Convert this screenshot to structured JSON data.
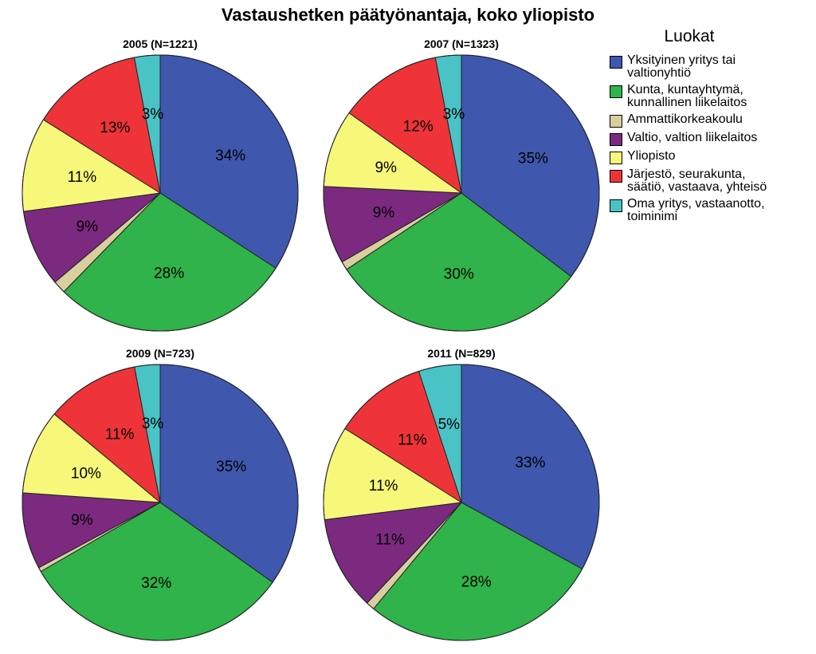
{
  "title": "Vastaushetken päätyönantaja, koko yliopisto",
  "legend": {
    "title": "Luokat",
    "items": [
      {
        "label": "Yksityinen yritys tai\nvaltionyhtiö",
        "color": "#3f57ad"
      },
      {
        "label": "Kunta, kuntayhtymä,\nkunnallinen liikelaitos",
        "color": "#2fb34a"
      },
      {
        "label": "Ammattikorkeakoulu",
        "color": "#d9cf9e"
      },
      {
        "label": "Valtio, valtion liikelaitos",
        "color": "#7b2a7f"
      },
      {
        "label": "Yliopisto",
        "color": "#f7f77a"
      },
      {
        "label": "Järjestö, seurakunta,\nsäätiö, vastaava, yhteisö",
        "color": "#ee3438"
      },
      {
        "label": "Oma yritys, vastaanotto,\ntoiminimi",
        "color": "#4ac3c6"
      }
    ]
  },
  "chart_data": [
    {
      "type": "pie",
      "title": "2005 (N=1221)",
      "categories": [
        "Yksityinen yritys tai valtionyhtiö",
        "Kunta, kuntayhtymä, kunnallinen liikelaitos",
        "Ammattikorkeakoulu",
        "Valtio, valtion liikelaitos",
        "Yliopisto",
        "Järjestö, seurakunta, säätiö, vastaava, yhteisö",
        "Oma yritys, vastaanotto, toiminimi"
      ],
      "values": [
        34,
        28,
        1.5,
        9,
        11,
        13,
        3
      ],
      "labels": [
        "34%",
        "28%",
        "",
        "9%",
        "11%",
        "13%",
        "3%"
      ]
    },
    {
      "type": "pie",
      "title": "2007 (N=1323)",
      "categories": [
        "Yksityinen yritys tai valtionyhtiö",
        "Kunta, kuntayhtymä, kunnallinen liikelaitos",
        "Ammattikorkeakoulu",
        "Valtio, valtion liikelaitos",
        "Yliopisto",
        "Järjestö, seurakunta, säätiö, vastaava, yhteisö",
        "Oma yritys, vastaanotto, toiminimi"
      ],
      "values": [
        35,
        30,
        1,
        9,
        9,
        12,
        3
      ],
      "labels": [
        "35%",
        "30%",
        "",
        "9%",
        "9%",
        "12%",
        "3%"
      ]
    },
    {
      "type": "pie",
      "title": "2009 (N=723)",
      "categories": [
        "Yksityinen yritys tai valtionyhtiö",
        "Kunta, kuntayhtymä, kunnallinen liikelaitos",
        "Ammattikorkeakoulu",
        "Valtio, valtion liikelaitos",
        "Yliopisto",
        "Järjestö, seurakunta, säätiö, vastaava, yhteisö",
        "Oma yritys, vastaanotto, toiminimi"
      ],
      "values": [
        35,
        32,
        0.5,
        9,
        10,
        11,
        3
      ],
      "labels": [
        "35%",
        "32%",
        "",
        "9%",
        "10%",
        "11%",
        "3%"
      ]
    },
    {
      "type": "pie",
      "title": "2011 (N=829)",
      "categories": [
        "Yksityinen yritys tai valtionyhtiö",
        "Kunta, kuntayhtymä, kunnallinen liikelaitos",
        "Ammattikorkeakoulu",
        "Valtio, valtion liikelaitos",
        "Yliopisto",
        "Järjestö, seurakunta, säätiö, vastaava, yhteisö",
        "Oma yritys, vastaanotto, toiminimi"
      ],
      "values": [
        33,
        28,
        1,
        11,
        11,
        11,
        5
      ],
      "labels": [
        "33%",
        "28%",
        "",
        "11%",
        "11%",
        "11%",
        "5%"
      ]
    }
  ]
}
